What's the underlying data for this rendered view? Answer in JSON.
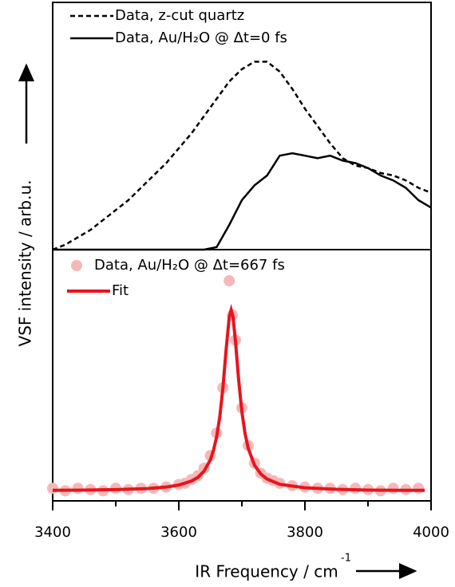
{
  "chart_data": [
    {
      "type": "line",
      "ylabel": "VSF intensity / arb.u.",
      "xlim": [
        3400,
        4000
      ],
      "ylim": [
        0,
        1
      ],
      "x": [
        3400,
        3420,
        3440,
        3460,
        3480,
        3500,
        3520,
        3540,
        3560,
        3580,
        3600,
        3620,
        3640,
        3660,
        3680,
        3700,
        3720,
        3740,
        3760,
        3780,
        3800,
        3820,
        3840,
        3860,
        3880,
        3900,
        3920,
        3940,
        3960,
        3980,
        4000
      ],
      "series": [
        {
          "name": "Data, z-cut quartz",
          "color": "#000000",
          "style": "dashed",
          "values": [
            0,
            0.02,
            0.05,
            0.08,
            0.12,
            0.16,
            0.2,
            0.25,
            0.3,
            0.35,
            0.41,
            0.47,
            0.54,
            0.61,
            0.68,
            0.73,
            0.76,
            0.76,
            0.72,
            0.65,
            0.57,
            0.5,
            0.43,
            0.37,
            0.34,
            0.33,
            0.31,
            0.3,
            0.28,
            0.25,
            0.23
          ]
        },
        {
          "name": "Data, Au/H₂O @ Δt=0 fs",
          "color": "#000000",
          "style": "solid",
          "values": [
            0,
            0,
            0,
            0,
            0,
            0,
            0,
            0,
            0,
            0,
            0,
            0,
            0,
            0.01,
            0.1,
            0.2,
            0.26,
            0.3,
            0.38,
            0.39,
            0.38,
            0.37,
            0.38,
            0.36,
            0.35,
            0.33,
            0.3,
            0.28,
            0.25,
            0.2,
            0.17
          ]
        }
      ]
    },
    {
      "type": "scatter",
      "xlabel": "IR Frequency / cm",
      "xlabel_superscript": "-1",
      "xlim": [
        3400,
        4000
      ],
      "ylim": [
        0,
        1
      ],
      "xticks": [
        3400,
        3600,
        3800,
        4000
      ],
      "xminorticks": [
        3500,
        3700,
        3900
      ],
      "series": [
        {
          "name": "Data, Au/H₂O @ Δt=667 fs",
          "color": "#f5b8b8",
          "style": "markers",
          "x": [
            3400,
            3420,
            3440,
            3460,
            3480,
            3500,
            3520,
            3540,
            3560,
            3580,
            3600,
            3610,
            3620,
            3630,
            3640,
            3650,
            3660,
            3670,
            3680,
            3685,
            3690,
            3700,
            3710,
            3720,
            3730,
            3740,
            3750,
            3760,
            3780,
            3800,
            3820,
            3840,
            3860,
            3880,
            3900,
            3920,
            3940,
            3960,
            3980
          ],
          "values": [
            0.05,
            0.04,
            0.05,
            0.045,
            0.04,
            0.05,
            0.045,
            0.05,
            0.05,
            0.055,
            0.065,
            0.07,
            0.085,
            0.1,
            0.13,
            0.18,
            0.27,
            0.45,
            0.876,
            0.74,
            0.64,
            0.37,
            0.22,
            0.15,
            0.11,
            0.09,
            0.08,
            0.07,
            0.06,
            0.055,
            0.05,
            0.05,
            0.045,
            0.05,
            0.045,
            0.04,
            0.05,
            0.045,
            0.05
          ]
        },
        {
          "name": "Fit",
          "color": "#e8141c",
          "style": "solid",
          "x": [
            3400,
            3450,
            3500,
            3550,
            3580,
            3600,
            3620,
            3630,
            3640,
            3650,
            3655,
            3660,
            3665,
            3670,
            3675,
            3680,
            3683,
            3686,
            3690,
            3695,
            3700,
            3705,
            3710,
            3720,
            3730,
            3740,
            3760,
            3800,
            3850,
            3900,
            3950,
            3990
          ],
          "values": [
            0.042,
            0.043,
            0.045,
            0.049,
            0.055,
            0.063,
            0.079,
            0.093,
            0.118,
            0.163,
            0.201,
            0.255,
            0.335,
            0.451,
            0.601,
            0.732,
            0.76,
            0.732,
            0.631,
            0.479,
            0.355,
            0.269,
            0.21,
            0.142,
            0.107,
            0.087,
            0.066,
            0.052,
            0.046,
            0.043,
            0.042,
            0.042
          ]
        }
      ]
    }
  ]
}
